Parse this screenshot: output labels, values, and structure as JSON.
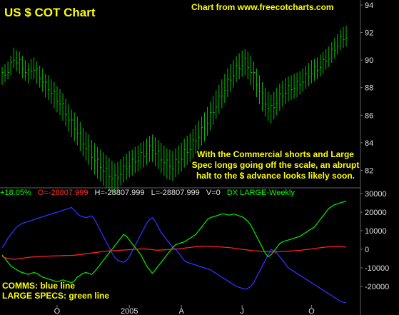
{
  "title": "US $ COT Chart",
  "source": "Chart from www.freecotcharts.com",
  "annotation": "With the Commercial shorts and Large Spec longs going off the scale, an abrupt halt to the $ advance looks likely soon.",
  "legend": {
    "comms": "COMMS: blue line",
    "large_specs": "LARGE SPECS: green line"
  },
  "status_bar": {
    "change": "+18.05%",
    "open": "O=-28807.999",
    "high": "H=-28807.999",
    "low": "L=-28807.999",
    "volume": "V=0",
    "series": "DX LARGE-Weekly"
  },
  "colors": {
    "price": "#00c000",
    "comms": "#3030ff",
    "large_specs": "#00e000",
    "other": "#ff2020",
    "text": "#ffff00",
    "status_change": "#00ff00",
    "status_open": "#ff3030",
    "status_series": "#00ff00"
  },
  "chart_data": [
    {
      "type": "ohlc",
      "name": "US Dollar Index weekly",
      "ylim": [
        80,
        94
      ],
      "yticks": [
        "94",
        "92",
        "90",
        "88",
        "86",
        "84",
        "82"
      ],
      "x": [
        1,
        2,
        3,
        4,
        5,
        6,
        7,
        8,
        9,
        10,
        11,
        12,
        13,
        14,
        15,
        16,
        17,
        18,
        19,
        20,
        21,
        22,
        23,
        24,
        25,
        26,
        27,
        28,
        29,
        30,
        31,
        32,
        33,
        34,
        35,
        36,
        37,
        38,
        39,
        40,
        41,
        42,
        43,
        44,
        45,
        46,
        47,
        48,
        49,
        50,
        51,
        52,
        53,
        54,
        55,
        56,
        57,
        58,
        59,
        60,
        61,
        62,
        63,
        64,
        65,
        66,
        67,
        68,
        69,
        70,
        71,
        72,
        73,
        74,
        75,
        76,
        77,
        78,
        79,
        80,
        81,
        82,
        83,
        84,
        85,
        86,
        87,
        88,
        89,
        90,
        91,
        92,
        93,
        94,
        95,
        96,
        97,
        98,
        99,
        100,
        101,
        102,
        103,
        104,
        105,
        106,
        107,
        108,
        109,
        110,
        111,
        112,
        113,
        114,
        115,
        116,
        117,
        118,
        119,
        120
      ],
      "high": [
        89.5,
        89.7,
        89.9,
        90.3,
        90.9,
        90.7,
        90.6,
        90.3,
        90.0,
        89.8,
        90.1,
        90.2,
        89.9,
        89.6,
        89.4,
        89.0,
        88.9,
        88.6,
        88.4,
        88.1,
        87.9,
        87.6,
        87.2,
        86.8,
        86.4,
        86.2,
        85.9,
        85.5,
        85.1,
        84.8,
        84.6,
        84.2,
        84.0,
        83.7,
        83.5,
        83.3,
        83.1,
        82.9,
        82.7,
        82.5,
        82.6,
        82.8,
        83.0,
        83.2,
        83.4,
        83.5,
        83.7,
        83.8,
        84.0,
        84.1,
        84.3,
        84.5,
        84.6,
        84.4,
        84.2,
        84.0,
        83.8,
        83.6,
        83.5,
        83.4,
        83.6,
        83.8,
        84.0,
        84.3,
        84.5,
        84.7,
        85.0,
        85.3,
        85.6,
        85.9,
        86.2,
        86.6,
        87.0,
        87.4,
        87.8,
        88.2,
        88.6,
        89.0,
        89.4,
        89.7,
        90.0,
        90.3,
        90.5,
        90.7,
        90.8,
        90.6,
        90.3,
        89.9,
        89.4,
        88.9,
        88.4,
        88.0,
        87.7,
        87.5,
        87.7,
        88.0,
        88.3,
        88.5,
        88.7,
        88.8,
        88.9,
        89.0,
        89.1,
        89.2,
        89.4,
        89.6,
        89.8,
        90.0,
        90.1,
        90.2,
        90.4,
        90.6,
        90.8,
        91.0,
        91.3,
        91.6,
        91.9,
        92.2,
        92.4,
        92.5
      ],
      "low": [
        88.2,
        88.4,
        88.6,
        88.9,
        89.4,
        89.2,
        89.0,
        88.7,
        88.5,
        88.3,
        88.6,
        88.6,
        88.3,
        88.0,
        87.7,
        87.3,
        87.1,
        86.8,
        86.5,
        86.2,
        86.0,
        85.6,
        85.2,
        84.8,
        84.4,
        84.1,
        83.8,
        83.4,
        83.0,
        82.7,
        82.4,
        82.0,
        81.7,
        81.4,
        81.2,
        80.9,
        80.7,
        80.5,
        80.4,
        80.3,
        80.6,
        80.9,
        81.1,
        81.3,
        81.5,
        81.6,
        81.8,
        81.9,
        82.1,
        82.2,
        82.4,
        82.6,
        82.6,
        82.3,
        82.1,
        81.8,
        81.6,
        81.4,
        81.3,
        81.2,
        81.5,
        81.7,
        81.9,
        82.2,
        82.4,
        82.6,
        82.9,
        83.2,
        83.5,
        83.8,
        84.1,
        84.5,
        84.9,
        85.3,
        85.7,
        86.1,
        86.5,
        86.9,
        87.3,
        87.7,
        88.0,
        88.4,
        88.6,
        88.8,
        88.9,
        88.6,
        88.2,
        87.8,
        87.3,
        86.8,
        86.3,
        85.9,
        85.6,
        85.4,
        85.7,
        86.0,
        86.3,
        86.6,
        86.8,
        87.0,
        87.1,
        87.2,
        87.3,
        87.5,
        87.7,
        87.9,
        88.1,
        88.3,
        88.5,
        88.6,
        88.8,
        89.0,
        89.3,
        89.5,
        89.8,
        90.1,
        90.4,
        90.7,
        90.9,
        91.0
      ]
    },
    {
      "type": "line",
      "ylim": [
        -30000,
        30000
      ],
      "yticks": [
        "30000",
        "20000",
        "10000",
        "0",
        "-10000",
        "-20000"
      ],
      "x": [
        1,
        2,
        3,
        4,
        5,
        6,
        7,
        8,
        9,
        10,
        11,
        12,
        13,
        14,
        15,
        16,
        17,
        18,
        19,
        20,
        21,
        22,
        23,
        24,
        25,
        26,
        27,
        28,
        29,
        30,
        31,
        32,
        33,
        34,
        35,
        36,
        37,
        38,
        39,
        40,
        41,
        42,
        43,
        44,
        45,
        46,
        47,
        48,
        49,
        50,
        51,
        52,
        53,
        54,
        55,
        56,
        57,
        58,
        59,
        60,
        61,
        62,
        63,
        64,
        65,
        66,
        67,
        68,
        69,
        70,
        71,
        72,
        73,
        74,
        75,
        76,
        77,
        78,
        79,
        80,
        81,
        82,
        83,
        84,
        85,
        86,
        87,
        88,
        89,
        90,
        91,
        92,
        93,
        94,
        95,
        96,
        97,
        98,
        99,
        100,
        101,
        102,
        103,
        104,
        105,
        106,
        107,
        108,
        109,
        110,
        111,
        112,
        113,
        114,
        115,
        116,
        117,
        118,
        119,
        120
      ],
      "xticks": [
        {
          "x": 20,
          "label": "O"
        },
        {
          "x": 45,
          "label": "2005"
        },
        {
          "x": 63,
          "label": "A"
        },
        {
          "x": 84,
          "label": "J"
        },
        {
          "x": 108,
          "label": "O"
        }
      ],
      "series": [
        {
          "key": "comms",
          "values": [
            1000,
            3000,
            6000,
            8000,
            10000,
            12000,
            13000,
            14000,
            14500,
            15000,
            15500,
            16000,
            16500,
            17000,
            17500,
            18000,
            18500,
            19000,
            19500,
            20000,
            20500,
            21000,
            21500,
            22000,
            22500,
            21000,
            19000,
            18000,
            17500,
            17000,
            17500,
            18000,
            16000,
            13000,
            10000,
            7000,
            4000,
            1000,
            -2000,
            -4500,
            -6000,
            -6500,
            -7000,
            -6000,
            -4000,
            -1000,
            2000,
            5000,
            8000,
            11000,
            14000,
            16000,
            17000,
            15000,
            12000,
            9000,
            7000,
            5000,
            3000,
            1000,
            0,
            -2000,
            -4000,
            -6000,
            -7000,
            -7500,
            -8000,
            -8500,
            -9000,
            -9500,
            -10000,
            -10500,
            -11000,
            -12000,
            -13000,
            -14000,
            -15000,
            -16000,
            -17000,
            -18000,
            -19000,
            -20000,
            -20500,
            -21000,
            -21500,
            -21000,
            -20000,
            -18000,
            -15000,
            -12000,
            -9000,
            -6000,
            -3000,
            0,
            -1000,
            -2000,
            -4000,
            -6000,
            -8000,
            -10000,
            -11000,
            -12000,
            -13000,
            -14000,
            -15000,
            -16000,
            -17000,
            -18000,
            -19000,
            -20000,
            -21000,
            -22000,
            -23000,
            -24000,
            -25000,
            -26000,
            -27000,
            -28000,
            -28500,
            -28800
          ]
        },
        {
          "key": "large_specs",
          "values": [
            -3000,
            -5000,
            -7000,
            -9000,
            -10000,
            -11000,
            -12000,
            -12500,
            -13000,
            -13500,
            -13000,
            -12500,
            -13000,
            -14000,
            -15000,
            -15500,
            -16000,
            -16500,
            -17000,
            -17500,
            -17000,
            -16500,
            -17000,
            -17500,
            -18000,
            -17000,
            -15000,
            -14000,
            -13000,
            -12500,
            -13000,
            -13500,
            -12000,
            -10000,
            -8000,
            -6000,
            -4000,
            -2000,
            0,
            2000,
            4000,
            6000,
            8000,
            7000,
            5000,
            3000,
            1000,
            -1000,
            -3000,
            -6000,
            -9000,
            -11000,
            -13000,
            -11000,
            -9000,
            -7000,
            -5000,
            -3000,
            -1000,
            1000,
            2500,
            3000,
            3500,
            4000,
            5000,
            6000,
            7000,
            8000,
            10000,
            12000,
            14000,
            16000,
            17000,
            17500,
            18000,
            18500,
            19000,
            19000,
            18500,
            18500,
            19000,
            18500,
            18000,
            17500,
            16500,
            15000,
            13000,
            10000,
            7000,
            4000,
            1000,
            -2000,
            -4000,
            -3000,
            -1000,
            1000,
            3000,
            4000,
            4500,
            5000,
            5500,
            6000,
            6500,
            7000,
            8000,
            9000,
            10000,
            11000,
            12000,
            14000,
            16000,
            18000,
            20000,
            22000,
            23000,
            24000,
            24500,
            25000,
            25500,
            26000
          ]
        },
        {
          "key": "other",
          "values": [
            -4000,
            -4500,
            -5000,
            -5200,
            -5400,
            -5300,
            -5000,
            -4800,
            -4600,
            -4400,
            -4200,
            -4100,
            -4000,
            -3900,
            -3800,
            -3800,
            -3700,
            -3600,
            -3600,
            -3500,
            -3500,
            -3400,
            -3400,
            -3300,
            -3300,
            -3200,
            -3000,
            -2800,
            -2600,
            -2400,
            -2200,
            -2000,
            -1800,
            -1600,
            -1400,
            -1200,
            -1000,
            -900,
            -800,
            -700,
            -600,
            -500,
            -400,
            -300,
            -200,
            -100,
            0,
            100,
            200,
            200,
            100,
            0,
            -200,
            -400,
            -500,
            -400,
            -300,
            -200,
            -100,
            0,
            100,
            200,
            400,
            600,
            800,
            1000,
            1200,
            1400,
            1500,
            1600,
            1700,
            1700,
            1600,
            1500,
            1400,
            1300,
            1200,
            1100,
            1000,
            800,
            600,
            400,
            200,
            0,
            -200,
            -400,
            -600,
            -800,
            -900,
            -1000,
            -1100,
            -1200,
            -1300,
            -1400,
            -1500,
            -1400,
            -1300,
            -1200,
            -1100,
            -1000,
            -900,
            -800,
            -700,
            -600,
            -400,
            -200,
            0,
            200,
            400,
            600,
            800,
            1000,
            1200,
            1300,
            1400,
            1500,
            1500,
            1400,
            1300,
            1200
          ]
        }
      ]
    }
  ]
}
